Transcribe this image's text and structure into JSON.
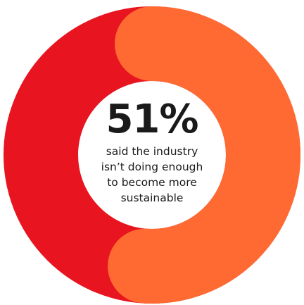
{
  "chart_data": {
    "type": "pie",
    "style": "donut",
    "slices": [
      {
        "value": 51,
        "color": "#ff6a33"
      },
      {
        "value": 49,
        "color": "#e8141f"
      }
    ],
    "center_value": "51%",
    "center_caption": [
      "said the industry",
      "isn’t doing enough",
      "to become more",
      "sustainable"
    ]
  },
  "colors": {
    "highlight": "#ff6a33",
    "base": "#e8141f",
    "text": "#1a1a1a",
    "background": "#ffffff"
  }
}
